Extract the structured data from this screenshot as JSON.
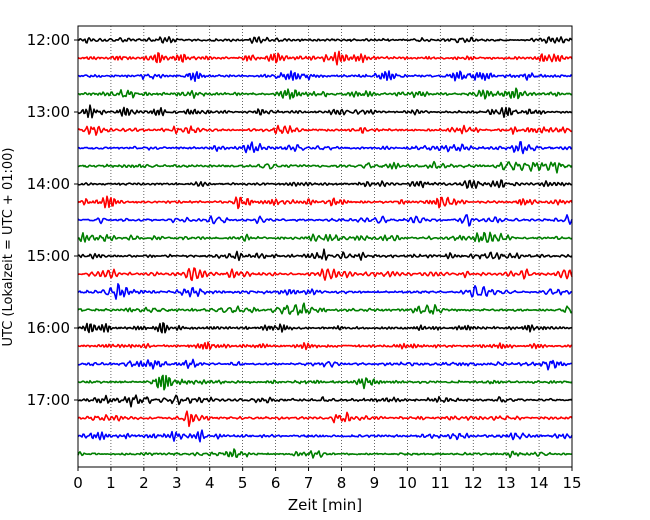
{
  "chart_data": {
    "type": "line",
    "title": "",
    "xlabel": "Zeit  [min]",
    "ylabel": "UTC (Lokalzeit = UTC + 01:00)",
    "xlim": [
      0,
      15
    ],
    "x_ticks": [
      "0",
      "1",
      "2",
      "3",
      "4",
      "5",
      "6",
      "7",
      "8",
      "9",
      "10",
      "11",
      "12",
      "13",
      "14",
      "15"
    ],
    "y_ticks": [
      "12:00",
      "13:00",
      "14:00",
      "15:00",
      "16:00",
      "17:00"
    ],
    "grid": "vertical dotted lines at each minute",
    "legend": "none",
    "row_interval_minutes": 15,
    "start_time_utc": "12:00",
    "traces": [
      {
        "time": "12:00",
        "color": "#000000"
      },
      {
        "time": "12:15",
        "color": "#ff0000"
      },
      {
        "time": "12:30",
        "color": "#0000ff"
      },
      {
        "time": "12:45",
        "color": "#007f00"
      },
      {
        "time": "13:00",
        "color": "#000000"
      },
      {
        "time": "13:15",
        "color": "#ff0000"
      },
      {
        "time": "13:30",
        "color": "#0000ff"
      },
      {
        "time": "13:45",
        "color": "#007f00"
      },
      {
        "time": "14:00",
        "color": "#000000"
      },
      {
        "time": "14:15",
        "color": "#ff0000"
      },
      {
        "time": "14:30",
        "color": "#0000ff"
      },
      {
        "time": "14:45",
        "color": "#007f00"
      },
      {
        "time": "15:00",
        "color": "#000000"
      },
      {
        "time": "15:15",
        "color": "#ff0000"
      },
      {
        "time": "15:30",
        "color": "#0000ff"
      },
      {
        "time": "15:45",
        "color": "#007f00"
      },
      {
        "time": "16:00",
        "color": "#000000"
      },
      {
        "time": "16:15",
        "color": "#ff0000"
      },
      {
        "time": "16:30",
        "color": "#0000ff"
      },
      {
        "time": "16:45",
        "color": "#007f00"
      },
      {
        "time": "17:00",
        "color": "#000000"
      },
      {
        "time": "17:15",
        "color": "#ff0000"
      },
      {
        "time": "17:30",
        "color": "#0000ff"
      },
      {
        "time": "17:45",
        "color": "#007f00"
      }
    ]
  }
}
